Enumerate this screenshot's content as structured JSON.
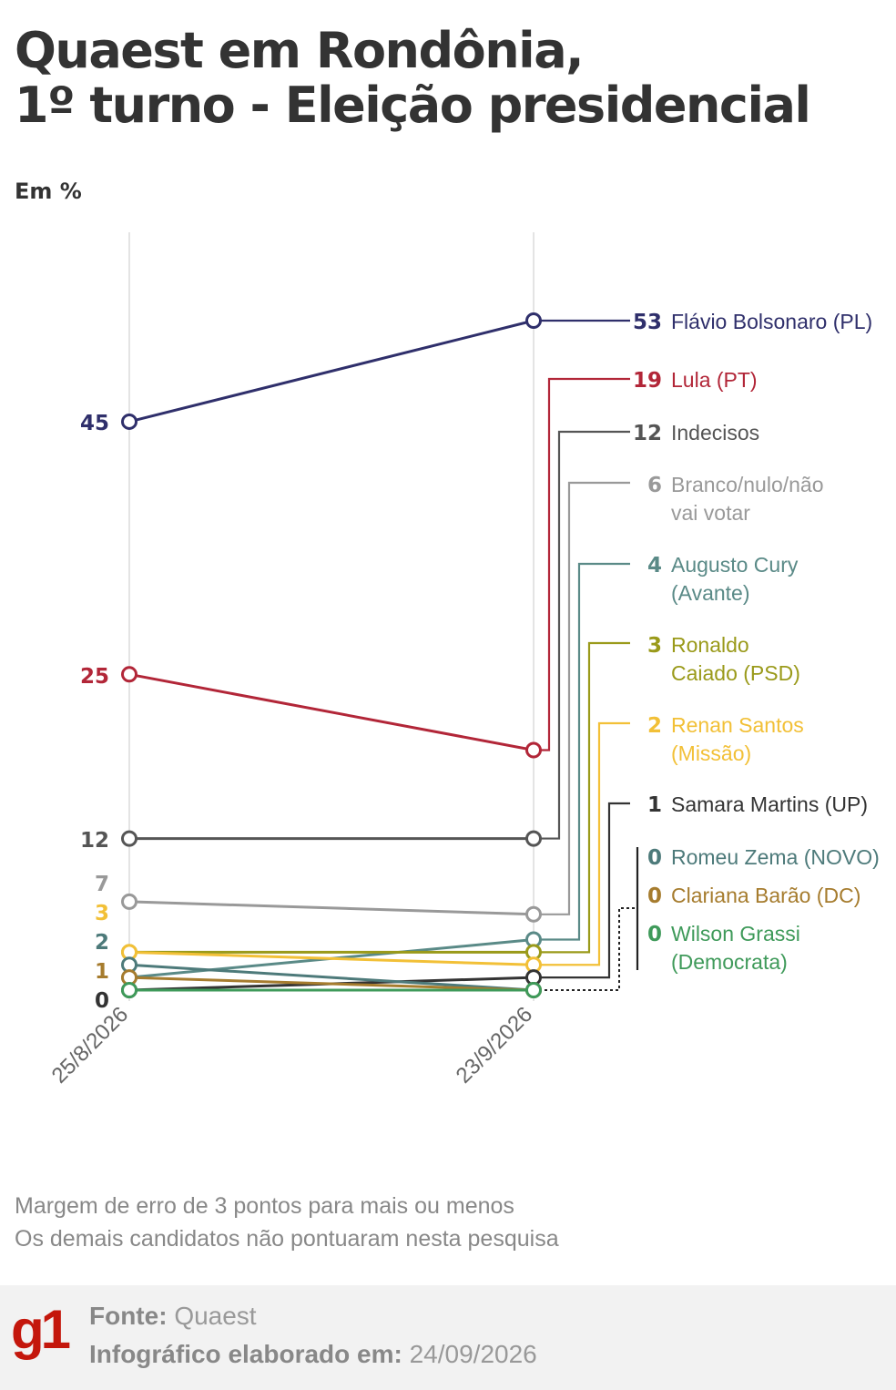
{
  "title": {
    "line1": "Quaest em Rondônia,",
    "line2": "1º turno - Eleição presidencial"
  },
  "unit_label": "Em %",
  "chart_data": {
    "type": "line",
    "x": [
      "25/8/2026",
      "23/9/2026"
    ],
    "ylim": [
      0,
      55
    ],
    "grid": "vertical lines at each date",
    "legend": "labels at right end of lines",
    "series": [
      {
        "name": "Flávio Bolsonaro (PL)",
        "values": [
          45,
          53
        ],
        "color": "#2f2f6b",
        "start_label": "45",
        "end_label": "53"
      },
      {
        "name": "Lula (PT)",
        "values": [
          25,
          19
        ],
        "color": "#b22638",
        "start_label": "25",
        "end_label": "19"
      },
      {
        "name": "Indecisos",
        "values": [
          12,
          12
        ],
        "color": "#555555",
        "start_label": "12",
        "end_label": "12"
      },
      {
        "name": "Branco/nulo/não vai votar",
        "values": [
          7,
          6
        ],
        "color": "#999999",
        "start_label": "7",
        "end_label": "6"
      },
      {
        "name": "Augusto Cury (Avante)",
        "values": [
          1,
          4
        ],
        "color": "#5a8a87",
        "start_label": "",
        "end_label": "4"
      },
      {
        "name": "Ronaldo Caiado (PSD)",
        "values": [
          3,
          3
        ],
        "color": "#9a9a1a",
        "start_label": "",
        "end_label": "3"
      },
      {
        "name": "Renan Santos (Missão)",
        "values": [
          3,
          2
        ],
        "color": "#f2c037",
        "start_label": "3",
        "end_label": "2"
      },
      {
        "name": "Samara Martins (UP)",
        "values": [
          0,
          1
        ],
        "color": "#333333",
        "start_label": "0",
        "end_label": "1"
      },
      {
        "name": "Romeu Zema (NOVO)",
        "values": [
          2,
          0
        ],
        "color": "#4d7a7a",
        "start_label": "2",
        "end_label": "0"
      },
      {
        "name": "Clariana Barão (DC)",
        "values": [
          1,
          0
        ],
        "color": "#a67c2e",
        "start_label": "1",
        "end_label": "0"
      },
      {
        "name": "Wilson Grassi (Democrata)",
        "values": [
          0,
          0
        ],
        "color": "#3f9a5a",
        "start_label": "",
        "end_label": "0"
      }
    ],
    "end_labels": [
      {
        "value": "53",
        "lines": [
          "Flávio Bolsonaro (PL)"
        ],
        "color": "#2f2f6b"
      },
      {
        "value": "19",
        "lines": [
          "Lula (PT)"
        ],
        "color": "#b22638"
      },
      {
        "value": "12",
        "lines": [
          "Indecisos"
        ],
        "color": "#555555"
      },
      {
        "value": "6",
        "lines": [
          "Branco/nulo/não",
          "vai votar"
        ],
        "color": "#999999"
      },
      {
        "value": "4",
        "lines": [
          "Augusto Cury",
          "(Avante)"
        ],
        "color": "#5a8a87"
      },
      {
        "value": "3",
        "lines": [
          "Ronaldo",
          "Caiado (PSD)"
        ],
        "color": "#9a9a1a"
      },
      {
        "value": "2",
        "lines": [
          "Renan Santos",
          "(Missão)"
        ],
        "color": "#f2c037"
      },
      {
        "value": "1",
        "lines": [
          "Samara Martins (UP)"
        ],
        "color": "#333333"
      },
      {
        "value": "0",
        "lines": [
          "Romeu Zema (NOVO)"
        ],
        "color": "#4d7a7a"
      },
      {
        "value": "0",
        "lines": [
          "Clariana Barão (DC)"
        ],
        "color": "#a67c2e"
      },
      {
        "value": "0",
        "lines": [
          "Wilson Grassi",
          "(Democrata)"
        ],
        "color": "#3f9a5a"
      }
    ],
    "start_labels": [
      {
        "value": "45",
        "color": "#2f2f6b"
      },
      {
        "value": "25",
        "color": "#b22638"
      },
      {
        "value": "12",
        "color": "#555555"
      },
      {
        "value": "7",
        "color": "#999999"
      },
      {
        "value": "3",
        "color": "#f2c037"
      },
      {
        "value": "2",
        "color": "#4d7a7a"
      },
      {
        "value": "1",
        "color": "#a67c2e"
      },
      {
        "value": "0",
        "color": "#333333"
      }
    ]
  },
  "notes": {
    "line1": "Margem de erro de 3 pontos para mais ou menos",
    "line2": "Os demais candidatos não pontuaram nesta pesquisa"
  },
  "footer": {
    "logo": "g1",
    "source_label": "Fonte:",
    "source_value": "Quaest",
    "date_label": "Infográfico elaborado em:",
    "date_value": "24/09/2026"
  }
}
